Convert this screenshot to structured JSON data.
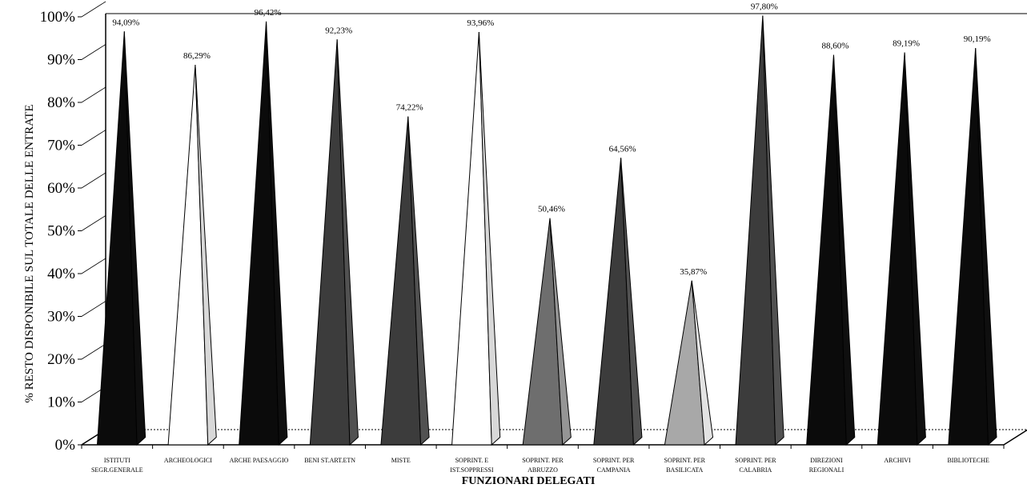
{
  "chart_data": {
    "type": "bar",
    "style": "3d-pyramid",
    "xlabel": "FUNZIONARI DELEGATI",
    "ylabel": "% RESTO DISPONIBILE SUL TOTALE DELLE ENTRATE",
    "ylim": [
      0,
      100
    ],
    "yticks": [
      "0%",
      "10%",
      "20%",
      "30%",
      "40%",
      "50%",
      "60%",
      "70%",
      "80%",
      "90%",
      "100%"
    ],
    "categories": [
      [
        "ISTITUTI",
        "SEGR.GENERALE"
      ],
      [
        "ARCHEOLOGICI"
      ],
      [
        "ARCHE PAESAGGIO"
      ],
      [
        "BENI ST.ART.ETN"
      ],
      [
        "MISTE"
      ],
      [
        "SOPRINT. E",
        "IST.SOPPRESSI"
      ],
      [
        "SOPRINT. PER",
        "ABRUZZO"
      ],
      [
        "SOPRINT. PER",
        "CAMPANIA"
      ],
      [
        "SOPRINT. PER",
        "BASILICATA"
      ],
      [
        "SOPRINT. PER",
        "CALABRIA"
      ],
      [
        "DIREZIONI",
        "REGIONALI"
      ],
      [
        "ARCHIVI"
      ],
      [
        "BIBLIOTECHE"
      ]
    ],
    "values": [
      94.09,
      86.29,
      96.42,
      92.23,
      74.22,
      93.96,
      50.46,
      64.56,
      35.87,
      97.8,
      88.6,
      89.19,
      90.19
    ],
    "data_labels": [
      "94,09%",
      "86,29%",
      "96,42%",
      "92,23%",
      "74,22%",
      "93,96%",
      "50,46%",
      "64,56%",
      "35,87%",
      "97,80%",
      "88,60%",
      "89,19%",
      "90,19%"
    ],
    "fills": [
      "black",
      "white",
      "black",
      "dark-gray",
      "dark-gray",
      "white",
      "medium-gray",
      "dark-gray",
      "light-gray",
      "dark-gray",
      "black",
      "black",
      "black"
    ],
    "colors": {
      "black": "#0b0b0b",
      "dark-gray": "#3c3c3c",
      "medium-gray": "#6e6e6e",
      "light-gray": "#a8a8a8",
      "white": "#ffffff"
    },
    "grid": false,
    "legend": "none"
  }
}
